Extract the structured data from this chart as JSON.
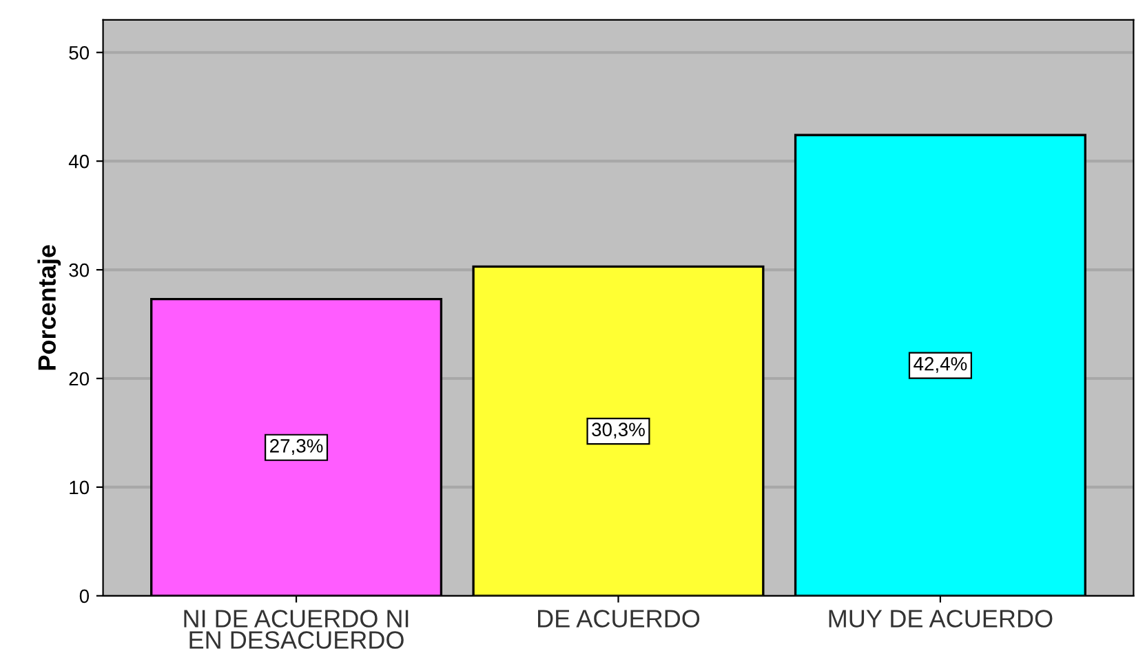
{
  "chart_data": {
    "type": "bar",
    "ylabel": "Porcentaje",
    "categories": [
      "NI DE ACUERDO NI\nEN DESACUERDO",
      "DE ACUERDO",
      "MUY DE ACUERDO"
    ],
    "values": [
      27.3,
      30.3,
      42.4
    ],
    "colors": [
      "#ff5cff",
      "#ffff33",
      "#00ffff"
    ],
    "value_labels": [
      "27,3%",
      "30,3%",
      "42,4%"
    ],
    "ylim": [
      0,
      53
    ],
    "yticks": [
      0,
      10,
      20,
      30,
      40,
      50
    ],
    "grid": "y",
    "legend": false
  }
}
